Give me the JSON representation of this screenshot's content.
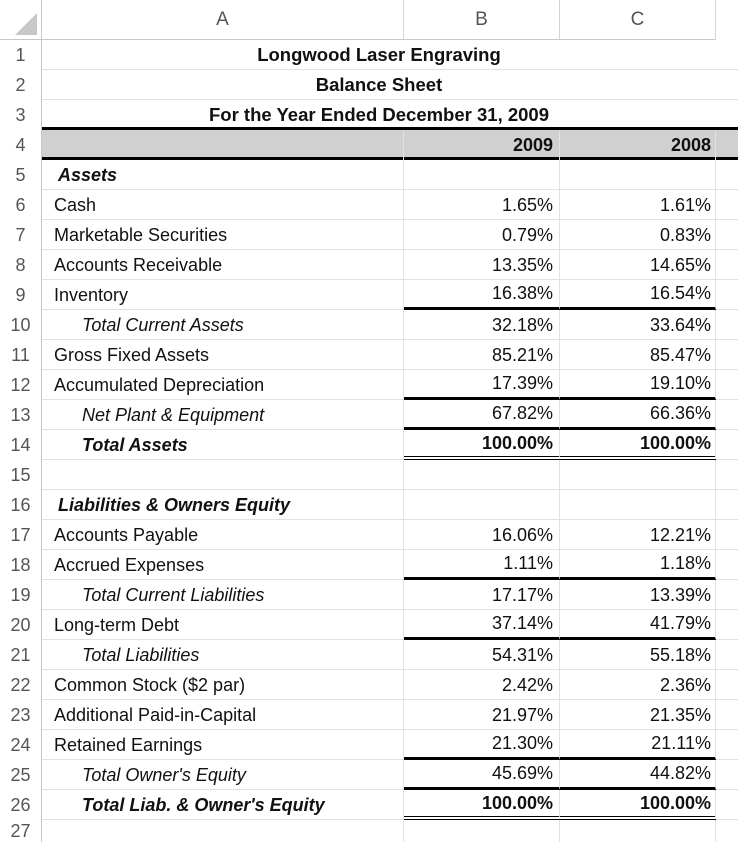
{
  "columns": [
    "A",
    "B",
    "C"
  ],
  "rows": [
    1,
    2,
    3,
    4,
    5,
    6,
    7,
    8,
    9,
    10,
    11,
    12,
    13,
    14,
    15,
    16,
    17,
    18,
    19,
    20,
    21,
    22,
    23,
    24,
    25,
    26,
    27
  ],
  "header": {
    "company": "Longwood Laser Engraving",
    "report": "Balance Sheet",
    "period": "For the Year Ended December 31, 2009",
    "year1": "2009",
    "year2": "2008"
  },
  "assets": {
    "section": "Assets",
    "cash": {
      "label": "Cash",
      "v2009": "1.65%",
      "v2008": "1.61%"
    },
    "securities": {
      "label": "Marketable Securities",
      "v2009": "0.79%",
      "v2008": "0.83%"
    },
    "receivable": {
      "label": "Accounts Receivable",
      "v2009": "13.35%",
      "v2008": "14.65%"
    },
    "inventory": {
      "label": "Inventory",
      "v2009": "16.38%",
      "v2008": "16.54%"
    },
    "total_current": {
      "label": "Total Current Assets",
      "v2009": "32.18%",
      "v2008": "33.64%"
    },
    "gross_fixed": {
      "label": "Gross Fixed Assets",
      "v2009": "85.21%",
      "v2008": "85.47%"
    },
    "depreciation": {
      "label": "Accumulated Depreciation",
      "v2009": "17.39%",
      "v2008": "19.10%"
    },
    "net_plant": {
      "label": "Net Plant & Equipment",
      "v2009": "67.82%",
      "v2008": "66.36%"
    },
    "total": {
      "label": "Total Assets",
      "v2009": "100.00%",
      "v2008": "100.00%"
    }
  },
  "liabilities": {
    "section": "Liabilities & Owners Equity",
    "payable": {
      "label": "Accounts Payable",
      "v2009": "16.06%",
      "v2008": "12.21%"
    },
    "accrued": {
      "label": "Accrued Expenses",
      "v2009": "1.11%",
      "v2008": "1.18%"
    },
    "total_current": {
      "label": "Total Current Liabilities",
      "v2009": "17.17%",
      "v2008": "13.39%"
    },
    "longterm": {
      "label": "Long-term Debt",
      "v2009": "37.14%",
      "v2008": "41.79%"
    },
    "total_liab": {
      "label": "Total Liabilities",
      "v2009": "54.31%",
      "v2008": "55.18%"
    },
    "common": {
      "label": "Common Stock ($2 par)",
      "v2009": "2.42%",
      "v2008": "2.36%"
    },
    "apic": {
      "label": "Additional Paid-in-Capital",
      "v2009": "21.97%",
      "v2008": "21.35%"
    },
    "retained": {
      "label": "Retained Earnings",
      "v2009": "21.30%",
      "v2008": "21.11%"
    },
    "total_equity": {
      "label": "Total Owner's Equity",
      "v2009": "45.69%",
      "v2008": "44.82%"
    },
    "total": {
      "label": "Total Liab. & Owner's Equity",
      "v2009": "100.00%",
      "v2008": "100.00%"
    }
  }
}
